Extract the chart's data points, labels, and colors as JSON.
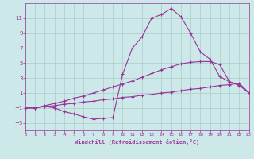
{
  "background_color": "#cce8e8",
  "grid_color": "#aacccc",
  "line_color": "#993399",
  "xlim": [
    0,
    23
  ],
  "ylim": [
    -4,
    13
  ],
  "yticks": [
    -3,
    -1,
    1,
    3,
    5,
    7,
    9,
    11
  ],
  "xticks": [
    0,
    1,
    2,
    3,
    4,
    5,
    6,
    7,
    8,
    9,
    10,
    11,
    12,
    13,
    14,
    15,
    16,
    17,
    18,
    19,
    20,
    21,
    22,
    23
  ],
  "xlabel": "Windchill (Refroidissement éolien,°C)",
  "curve1_x": [
    0,
    1,
    2,
    3,
    4,
    5,
    6,
    7,
    8,
    9,
    10,
    11,
    12,
    13,
    14,
    15,
    16,
    17,
    18,
    19,
    20,
    21,
    22,
    23
  ],
  "curve1_y": [
    -1.0,
    -1.0,
    -0.8,
    -0.7,
    -0.5,
    -0.4,
    -0.2,
    -0.1,
    0.1,
    0.2,
    0.4,
    0.5,
    0.7,
    0.8,
    1.0,
    1.1,
    1.3,
    1.5,
    1.6,
    1.8,
    2.0,
    2.1,
    2.3,
    1.0
  ],
  "curve2_x": [
    0,
    1,
    2,
    3,
    4,
    5,
    6,
    7,
    8,
    9,
    10,
    11,
    12,
    13,
    14,
    15,
    16,
    17,
    18,
    19,
    20,
    21,
    22,
    23
  ],
  "curve2_y": [
    -1.0,
    -1.0,
    -0.7,
    -0.4,
    -0.1,
    0.3,
    0.6,
    1.0,
    1.4,
    1.8,
    2.2,
    2.6,
    3.1,
    3.6,
    4.1,
    4.5,
    4.9,
    5.1,
    5.2,
    5.2,
    4.8,
    2.5,
    2.0,
    1.0
  ],
  "curve3_x": [
    0,
    1,
    2,
    3,
    4,
    5,
    6,
    7,
    8,
    9,
    10,
    11,
    12,
    13,
    14,
    15,
    16,
    17,
    18,
    19,
    20,
    21,
    22,
    23
  ],
  "curve3_y": [
    -1.0,
    -1.0,
    -0.8,
    -1.0,
    -1.5,
    -1.8,
    -2.2,
    -2.5,
    -2.4,
    -2.3,
    3.5,
    7.0,
    8.5,
    11.0,
    11.5,
    12.3,
    11.2,
    9.0,
    6.5,
    5.5,
    3.2,
    2.5,
    2.1,
    1.0
  ]
}
